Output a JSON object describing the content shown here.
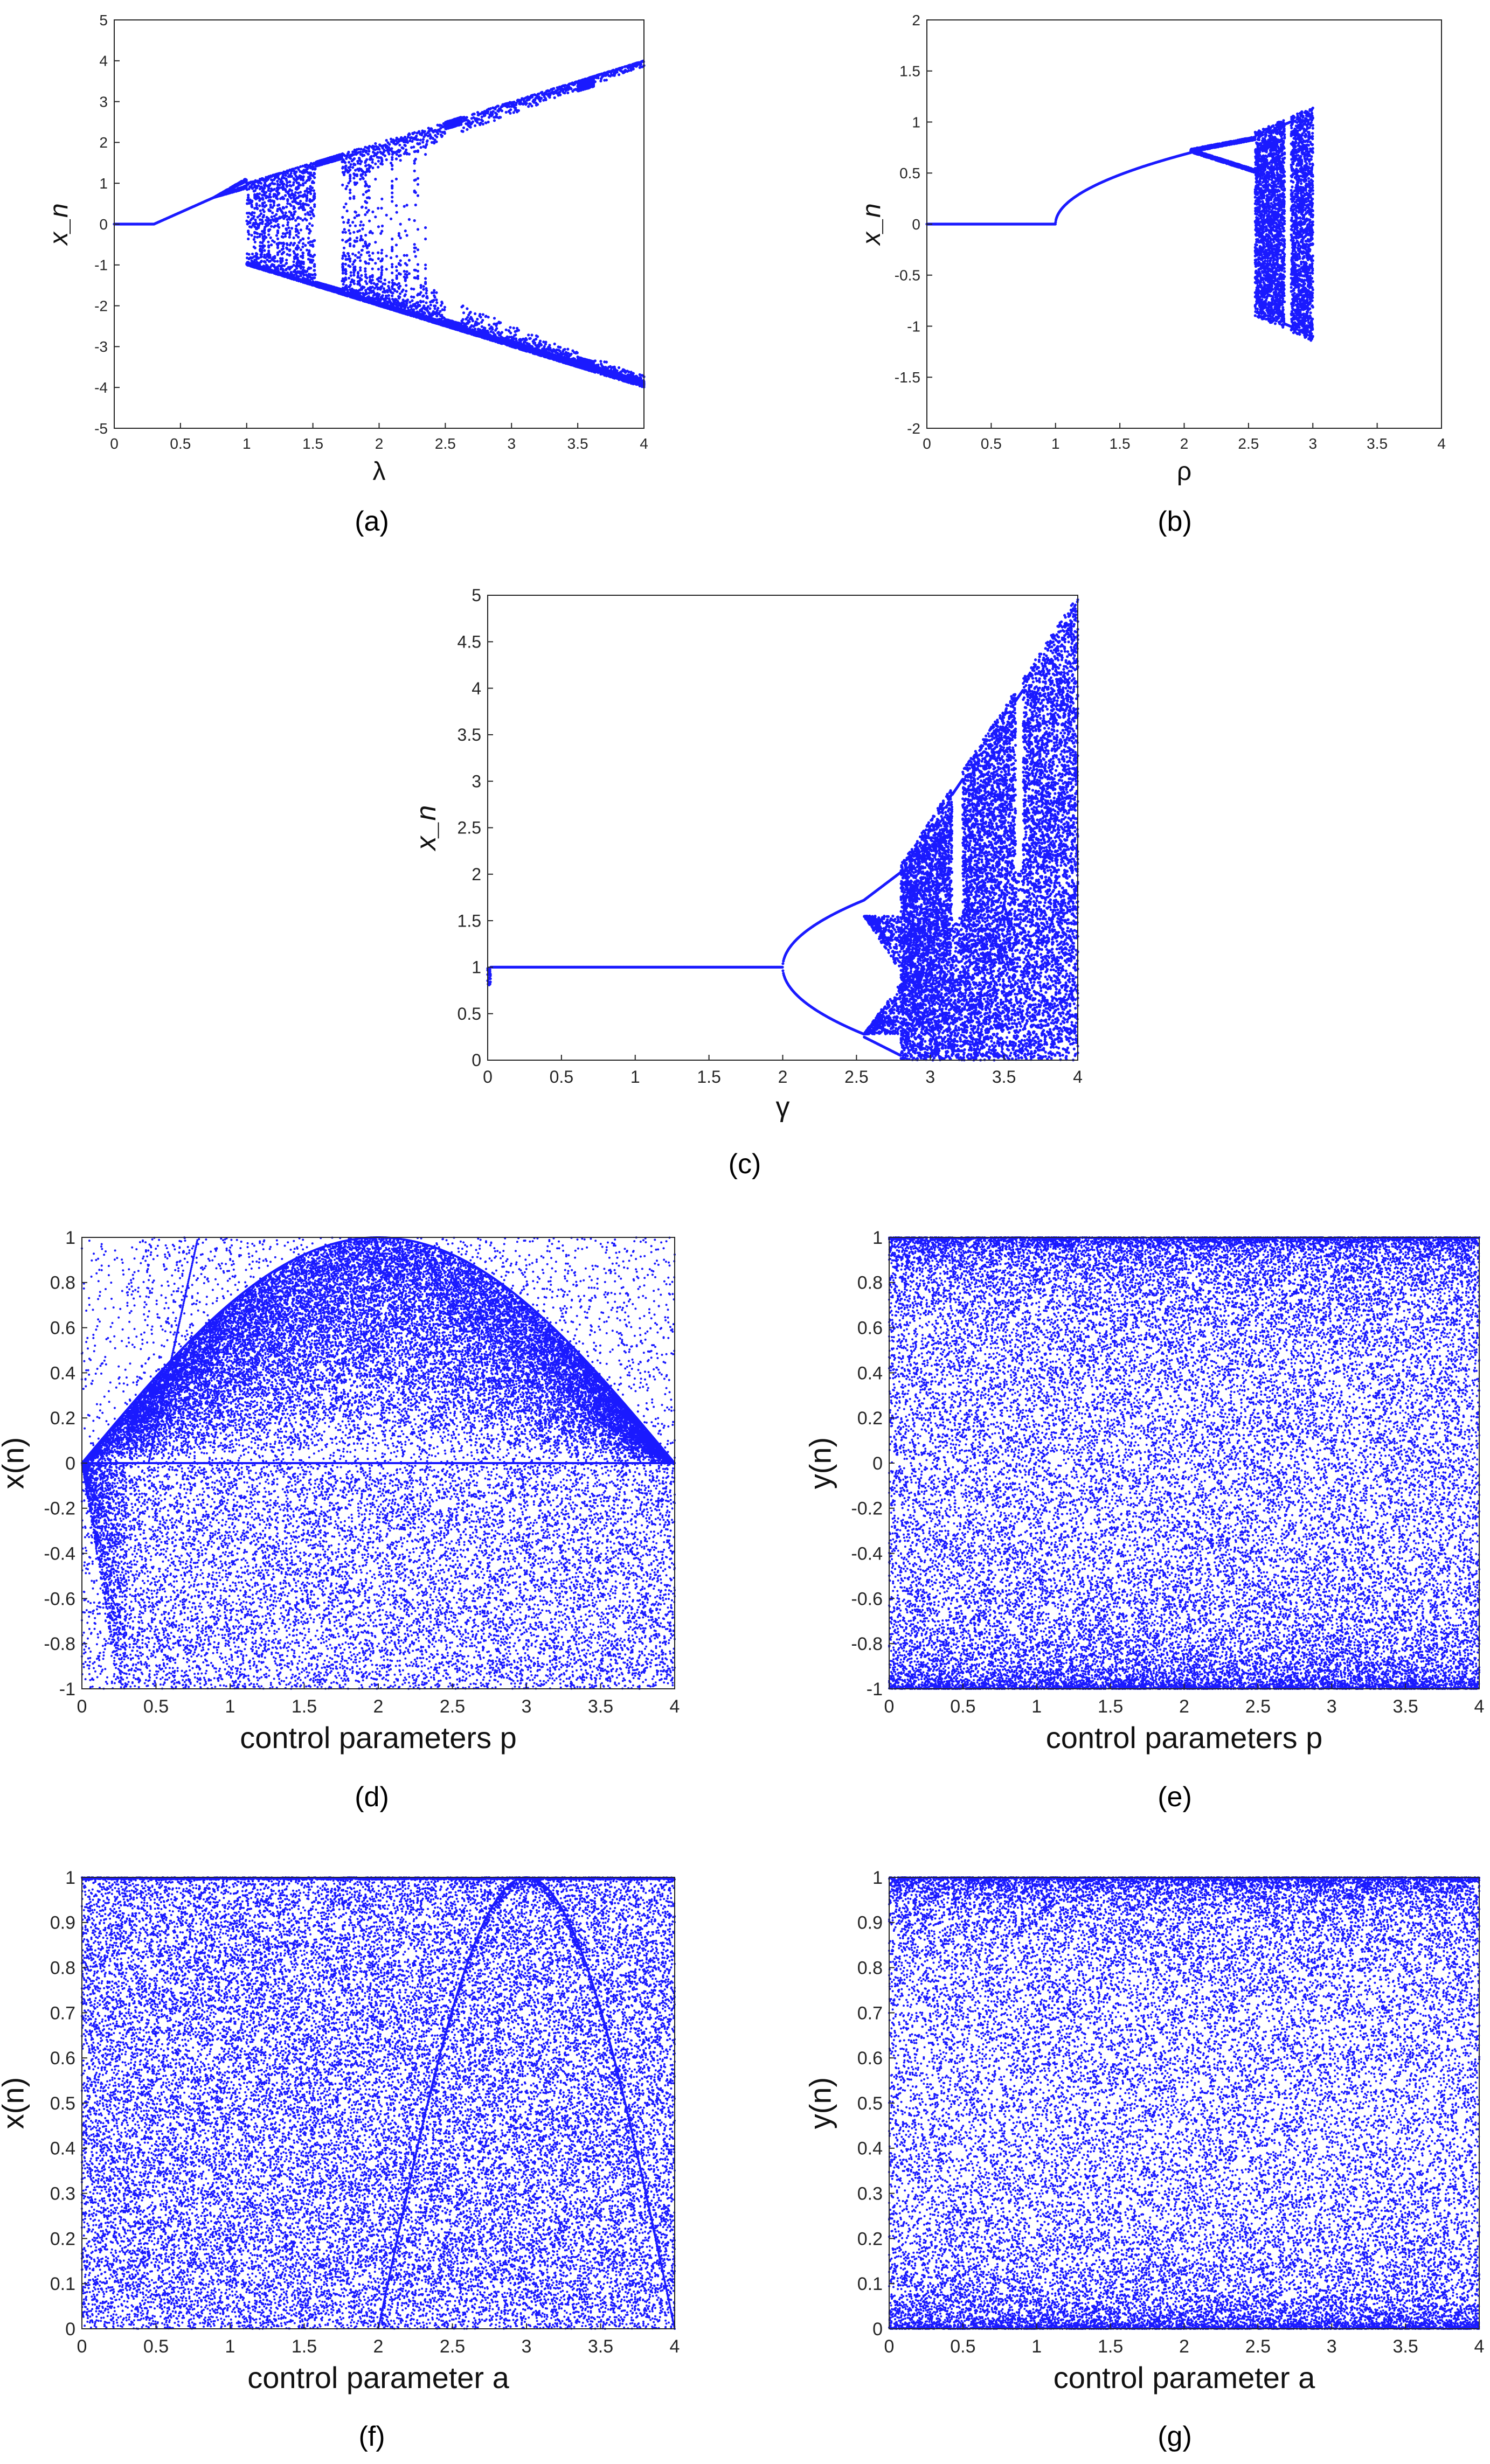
{
  "figure": {
    "panel_labels": [
      "(a)",
      "(b)",
      "(c)",
      "(d)",
      "(e)",
      "(f)",
      "(g)"
    ]
  },
  "colors": {
    "points": "#1a1aff",
    "axis": "#262626",
    "tick_text": "#262626"
  },
  "chart_data": [
    {
      "id": "a",
      "type": "scatter",
      "xlabel": "λ",
      "ylabel": "x_n",
      "xlim": [
        0,
        4
      ],
      "ylim": [
        -5,
        5
      ],
      "xticks": [
        "0",
        "0.5",
        "1",
        "1.5",
        "2",
        "2.5",
        "3",
        "3.5",
        "4"
      ],
      "yticks": [
        "-5",
        "-4",
        "-3",
        "-2",
        "-1",
        "0",
        "1",
        "2",
        "3",
        "4",
        "5"
      ],
      "grid": false,
      "series": [
        {
          "description_points": [
            [
              0,
              0
            ],
            [
              0.3,
              0
            ],
            [
              0.75,
              0.65
            ],
            [
              1,
              1
            ],
            [
              1,
              -1
            ],
            [
              2.5,
              2.5
            ],
            [
              2.5,
              -2.5
            ],
            [
              4,
              4
            ],
            [
              4,
              -4
            ]
          ],
          "notes": [
            "fixed point 0 up to 0.3",
            "period doubling near 0.75",
            "chaotic band |x| ≤ λ beyond 1",
            "periodic windows near 1.6, 2.6, 3.6"
          ]
        }
      ]
    },
    {
      "id": "b",
      "type": "scatter",
      "xlabel": "ρ",
      "ylabel": "x_n",
      "xlim": [
        0,
        4
      ],
      "ylim": [
        -2,
        2
      ],
      "xticks": [
        "0",
        "0.5",
        "1",
        "1.5",
        "2",
        "2.5",
        "3",
        "3.5",
        "4"
      ],
      "yticks": [
        "-2",
        "-1.5",
        "-1",
        "-0.5",
        "0",
        "0.5",
        "1",
        "1.5",
        "2"
      ],
      "grid": false,
      "series": [
        {
          "description_points": [
            [
              0,
              0
            ],
            [
              1,
              0
            ],
            [
              2,
              0.7
            ],
            [
              2.3,
              0.8
            ],
            [
              2.3,
              0.55
            ],
            [
              2.6,
              0.9
            ],
            [
              2.6,
              -1
            ],
            [
              3,
              1.15
            ],
            [
              3,
              -1.15
            ]
          ],
          "notes": [
            "zero up to 1",
            "sqrt branch 1–2",
            "period-2 near 2.1–2.5",
            "chaotic band 2.6–3"
          ]
        }
      ]
    },
    {
      "id": "c",
      "type": "scatter",
      "xlabel": "γ",
      "ylabel": "x_n",
      "xlim": [
        0,
        4
      ],
      "ylim": [
        0,
        5
      ],
      "xticks": [
        "0",
        "0.5",
        "1",
        "1.5",
        "2",
        "2.5",
        "3",
        "3.5",
        "4"
      ],
      "yticks": [
        "0",
        "0.5",
        "1",
        "1.5",
        "2",
        "2.5",
        "3",
        "3.5",
        "4",
        "4.5",
        "5"
      ],
      "grid": false,
      "series": [
        {
          "description_points": [
            [
              0,
              1
            ],
            [
              2,
              1
            ],
            [
              2.55,
              1.7
            ],
            [
              2.55,
              0.3
            ],
            [
              2.8,
              0.9
            ],
            [
              3,
              2.2
            ],
            [
              3.5,
              3.6
            ],
            [
              4,
              5
            ],
            [
              4,
              0
            ]
          ],
          "notes": [
            "fixed point 1 up to 2",
            "period doubling 2–2.8",
            "chaotic fan up to 5 at γ = 4",
            "windows near 3.2 and 3.6"
          ]
        }
      ]
    },
    {
      "id": "d",
      "type": "scatter",
      "xlabel": "control parameters p",
      "ylabel": "x(n)",
      "xlim": [
        0,
        4
      ],
      "ylim": [
        -1,
        1
      ],
      "xticks": [
        "0",
        "0.5",
        "1",
        "1.5",
        "2",
        "2.5",
        "3",
        "3.5",
        "4"
      ],
      "yticks": [
        "-1",
        "-0.8",
        "-0.6",
        "-0.4",
        "-0.2",
        "0",
        "0.2",
        "0.4",
        "0.6",
        "0.8",
        "1"
      ],
      "grid": false,
      "series": [
        {
          "description_points": [
            [
              0,
              0
            ],
            [
              2,
              1
            ],
            [
              4,
              0
            ],
            [
              0.75,
              1
            ],
            [
              0.25,
              -1
            ],
            [
              1.25,
              -1
            ]
          ],
          "notes": [
            "dense upper region under parabola peaking at p = 2",
            "lower half sparse with arcs"
          ]
        }
      ]
    },
    {
      "id": "e",
      "type": "scatter",
      "xlabel": "control parameters p",
      "ylabel": "y(n)",
      "xlim": [
        0,
        4
      ],
      "ylim": [
        -1,
        1
      ],
      "xticks": [
        "0",
        "0.5",
        "1",
        "1.5",
        "2",
        "2.5",
        "3",
        "3.5",
        "4"
      ],
      "yticks": [
        "-1",
        "-0.8",
        "-0.6",
        "-0.4",
        "-0.2",
        "0",
        "0.2",
        "0.4",
        "0.6",
        "0.8",
        "1"
      ],
      "grid": false,
      "series": [
        {
          "description_points": [
            [
              0,
              -1
            ],
            [
              4,
              1
            ]
          ],
          "notes": [
            "uniformly dense over the whole range",
            "denser near y = ±1"
          ]
        }
      ]
    },
    {
      "id": "f",
      "type": "scatter",
      "xlabel": "control parameter a",
      "ylabel": "x(n)",
      "xlim": [
        0,
        4
      ],
      "ylim": [
        0,
        1
      ],
      "xticks": [
        "0",
        "0.5",
        "1",
        "1.5",
        "2",
        "2.5",
        "3",
        "3.5",
        "4"
      ],
      "yticks": [
        "0",
        "0.1",
        "0.2",
        "0.3",
        "0.4",
        "0.5",
        "0.6",
        "0.7",
        "0.8",
        "0.9",
        "1"
      ],
      "grid": false,
      "series": [
        {
          "description_points": [
            [
              2,
              0
            ],
            [
              3,
              1
            ],
            [
              4,
              0
            ]
          ],
          "notes": [
            "dense scatter across whole range",
            "darker parabolic arc between 2 and 4"
          ]
        }
      ]
    },
    {
      "id": "g",
      "type": "scatter",
      "xlabel": "control parameter a",
      "ylabel": "y(n)",
      "xlim": [
        0,
        4
      ],
      "ylim": [
        0,
        1
      ],
      "xticks": [
        "0",
        "0.5",
        "1",
        "1.5",
        "2",
        "2.5",
        "3",
        "3.5",
        "4"
      ],
      "yticks": [
        "0",
        "0.1",
        "0.2",
        "0.3",
        "0.4",
        "0.5",
        "0.6",
        "0.7",
        "0.8",
        "0.9",
        "1"
      ],
      "grid": false,
      "series": [
        {
          "description_points": [
            [
              0,
              0
            ],
            [
              4,
              1
            ]
          ],
          "notes": [
            "uniform dense scatter",
            "denser near y = 0 and y = 1"
          ]
        }
      ]
    }
  ]
}
